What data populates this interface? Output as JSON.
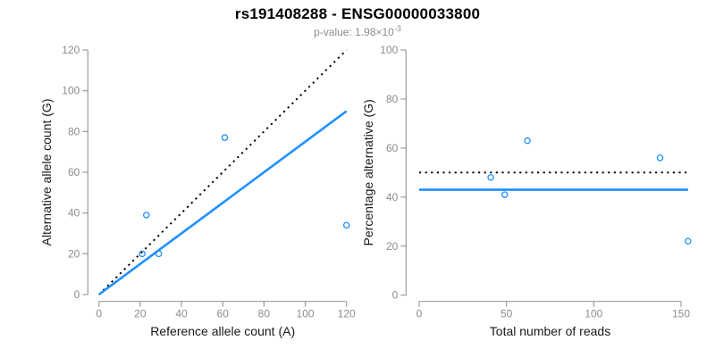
{
  "header": {
    "title": "rs191408288 - ENSG00000033800",
    "pvalue_base": "p-value: 1.98×10",
    "pvalue_exp": "-3"
  },
  "colors": {
    "accent_blue": "#1E90FF",
    "line_black": "#000000",
    "axis_gray": "#9c9c9c",
    "tick_label_gray": "#8c8c8c",
    "subtitle_gray": "#8c8c8c",
    "axis_title_dark": "#1a1a1a"
  },
  "chart_data": [
    {
      "name": "allele-counts-scatter",
      "type": "scatter",
      "xlabel": "Reference allele count (A)",
      "ylabel": "Alternative allele count (G)",
      "xlim": [
        0,
        120
      ],
      "ylim": [
        0,
        120
      ],
      "xticks": [
        0,
        20,
        40,
        60,
        80,
        100,
        120
      ],
      "yticks": [
        0,
        20,
        40,
        60,
        80,
        100,
        120
      ],
      "grid": false,
      "legend": "none",
      "points": [
        [
          21,
          20
        ],
        [
          23,
          39
        ],
        [
          29,
          20
        ],
        [
          61,
          77
        ],
        [
          120,
          34
        ]
      ],
      "lines": [
        {
          "name": "identity-line",
          "style": "dotted",
          "color": "#000000",
          "from": [
            0,
            0
          ],
          "to": [
            120,
            120
          ]
        },
        {
          "name": "fit-line",
          "style": "solid",
          "color": "#1E90FF",
          "from": [
            0,
            0
          ],
          "to": [
            120,
            90
          ]
        }
      ]
    },
    {
      "name": "percentage-scatter",
      "type": "scatter",
      "xlabel": "Total number of reads",
      "ylabel": "Percentage alternative (G)",
      "xlim": [
        0,
        150
      ],
      "ylim": [
        0,
        100
      ],
      "xticks": [
        0,
        50,
        100,
        150
      ],
      "yticks": [
        0,
        20,
        40,
        60,
        80,
        100
      ],
      "grid": false,
      "legend": "none",
      "points": [
        [
          41,
          48
        ],
        [
          49,
          41
        ],
        [
          62,
          63
        ],
        [
          138,
          56
        ],
        [
          154,
          22
        ]
      ],
      "lines": [
        {
          "name": "expected-50-percent-line",
          "style": "dotted",
          "color": "#000000",
          "y": 50
        },
        {
          "name": "mean-percentage-line",
          "style": "solid",
          "color": "#1E90FF",
          "y": 43
        }
      ]
    }
  ]
}
